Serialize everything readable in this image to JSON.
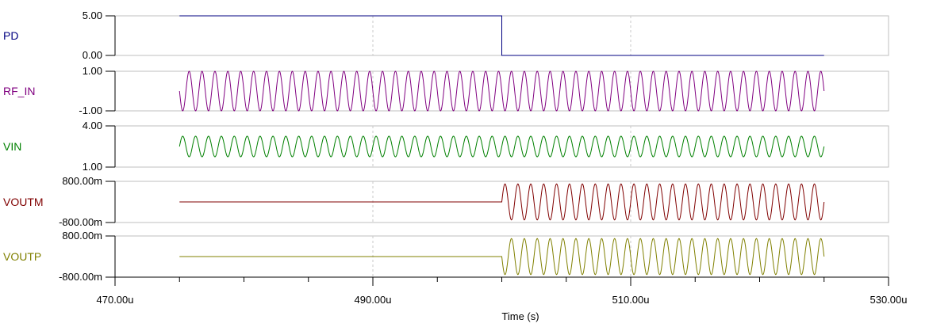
{
  "chart_data": {
    "type": "line",
    "xlabel": "Time (s)",
    "xlim": [
      470,
      530
    ],
    "x_unit": "u",
    "x_ticks": [
      "470.00u",
      "490.00u",
      "510.00u",
      "530.00u"
    ],
    "grid": "vertical dashed lines at 490.00u and 510.00u",
    "series": [
      {
        "name": "PD",
        "color": "#000080",
        "kind": "step",
        "ylim": [
          0,
          5
        ],
        "y_ticks": [
          "5.00",
          "0.00"
        ],
        "x": [
          475,
          500,
          500,
          525
        ],
        "y": [
          5,
          5,
          0,
          0
        ]
      },
      {
        "name": "RF_IN",
        "color": "#800080",
        "kind": "sine",
        "ylim": [
          -1,
          1
        ],
        "y_ticks": [
          "1.00",
          "-1.00"
        ],
        "x_start": 475,
        "x_end": 525,
        "offset": 0,
        "amplitude": 1,
        "period_us": 1.0,
        "phase_deg": 180,
        "active_from": 475
      },
      {
        "name": "VIN",
        "color": "#008000",
        "kind": "sine",
        "ylim": [
          1,
          4
        ],
        "y_ticks": [
          "4.00",
          "1.00"
        ],
        "x_start": 475,
        "x_end": 525,
        "offset": 2.5,
        "amplitude": 0.75,
        "period_us": 1.0,
        "phase_deg": 0,
        "active_from": 475
      },
      {
        "name": "VOUTM",
        "color": "#800000",
        "kind": "sine",
        "ylim": [
          -800,
          800
        ],
        "y_ticks": [
          "800.00m",
          "-800.00m"
        ],
        "x_start": 475,
        "x_end": 525,
        "offset": 0,
        "amplitude": 700,
        "period_us": 1.0,
        "phase_deg": 0,
        "active_from": 500
      },
      {
        "name": "VOUTP",
        "color": "#808000",
        "kind": "sine",
        "ylim": [
          -800,
          800
        ],
        "y_ticks": [
          "800.00m",
          "-800.00m"
        ],
        "x_start": 475,
        "x_end": 525,
        "offset": 0,
        "amplitude": 700,
        "period_us": 1.0,
        "phase_deg": 180,
        "active_from": 500
      }
    ]
  }
}
